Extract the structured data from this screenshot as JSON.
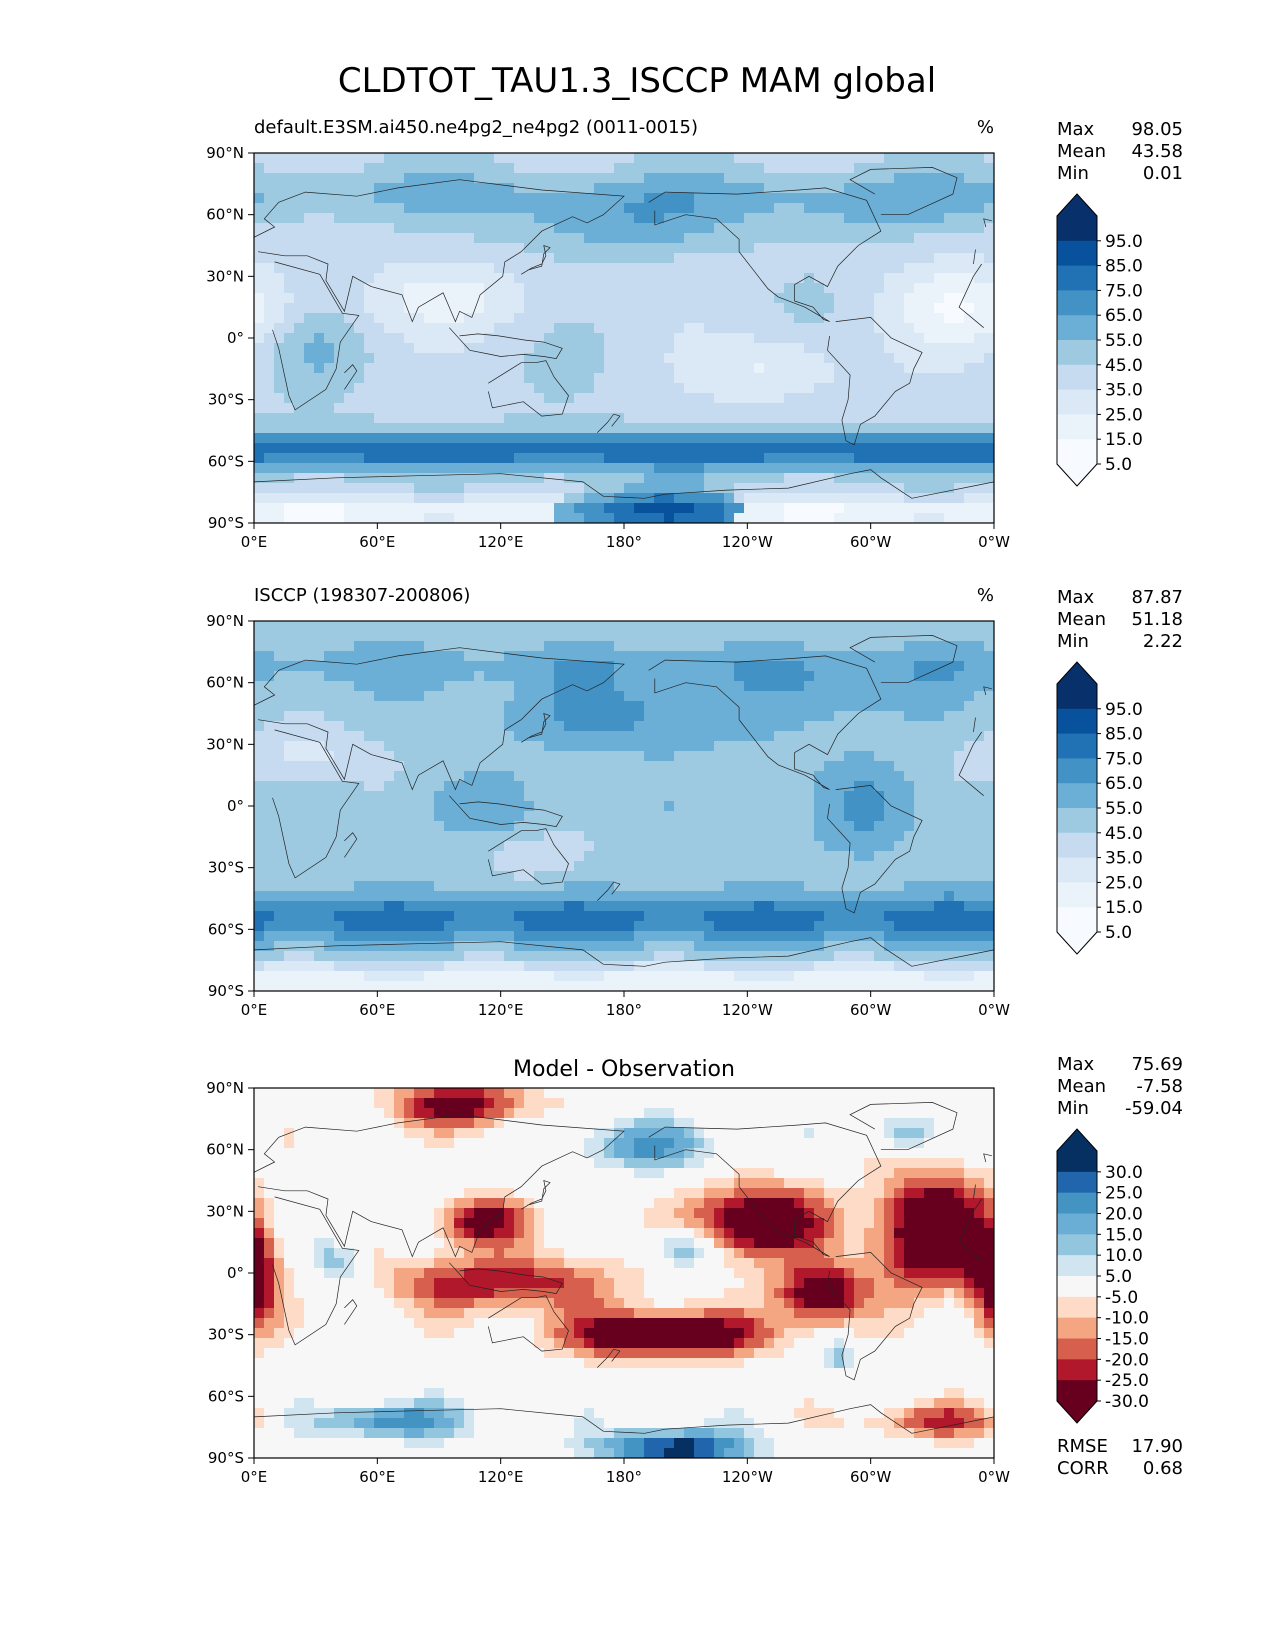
{
  "figure_title": "CLDTOT_TAU1.3_ISCCP MAM global",
  "x_ticks": [
    "0°E",
    "60°E",
    "120°E",
    "180°",
    "120°W",
    "60°W",
    "0°W"
  ],
  "y_ticks": [
    "90°N",
    "60°N",
    "30°N",
    "0°",
    "30°S",
    "60°S",
    "90°S"
  ],
  "chart_data": [
    {
      "type": "heatmap",
      "title": "default.E3SM.ai450.ne4pg2_ne4pg2 (0011-0015)",
      "units": "%",
      "stats": {
        "max_label": "Max",
        "max": "98.05",
        "mean_label": "Mean",
        "mean": "43.58",
        "min_label": "Min",
        "min": "0.01"
      },
      "colorbar": {
        "levels": [
          "95.0",
          "85.0",
          "75.0",
          "65.0",
          "55.0",
          "45.0",
          "35.0",
          "25.0",
          "15.0",
          "5.0"
        ],
        "colors": [
          "#08306b",
          "#08519c",
          "#2171b5",
          "#4292c6",
          "#6baed6",
          "#9ecae1",
          "#c6dbef",
          "#dbe9f6",
          "#eaf2fa",
          "#f7fbff"
        ],
        "extend": "both"
      },
      "x_range": [
        0,
        360
      ],
      "y_range": [
        -90,
        90
      ]
    },
    {
      "type": "heatmap",
      "title": "ISCCP (198307-200806)",
      "units": "%",
      "stats": {
        "max_label": "Max",
        "max": "87.87",
        "mean_label": "Mean",
        "mean": "51.18",
        "min_label": "Min",
        "min": "2.22"
      },
      "colorbar": {
        "levels": [
          "95.0",
          "85.0",
          "75.0",
          "65.0",
          "55.0",
          "45.0",
          "35.0",
          "25.0",
          "15.0",
          "5.0"
        ],
        "colors": [
          "#08306b",
          "#08519c",
          "#2171b5",
          "#4292c6",
          "#6baed6",
          "#9ecae1",
          "#c6dbef",
          "#dbe9f6",
          "#eaf2fa",
          "#f7fbff"
        ],
        "extend": "both"
      },
      "x_range": [
        0,
        360
      ],
      "y_range": [
        -90,
        90
      ]
    },
    {
      "type": "heatmap",
      "title": "Model - Observation",
      "units": "",
      "stats": {
        "max_label": "Max",
        "max": "75.69",
        "mean_label": "Mean",
        "mean": "-7.58",
        "min_label": "Min",
        "min": "-59.04"
      },
      "colorbar": {
        "levels": [
          "30.0",
          "25.0",
          "20.0",
          "15.0",
          "10.0",
          "5.0",
          "-5.0",
          "-10.0",
          "-15.0",
          "-20.0",
          "-25.0",
          "-30.0"
        ],
        "colors": [
          "#053061",
          "#2166ac",
          "#4393c3",
          "#6aaed6",
          "#92c5de",
          "#d1e5f0",
          "#f7f7f7",
          "#fddbc7",
          "#f4a582",
          "#d6604d",
          "#b2182b",
          "#67001f"
        ],
        "extend": "both"
      },
      "rmse_label": "RMSE",
      "rmse": "17.90",
      "corr_label": "CORR",
      "corr": "0.68",
      "x_range": [
        0,
        360
      ],
      "y_range": [
        -90,
        90
      ]
    }
  ]
}
